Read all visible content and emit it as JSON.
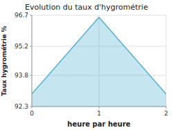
{
  "chart_data": {
    "type": "area",
    "title": "Evolution du taux d'hygrométrie",
    "x_label": "heure par heure",
    "y_label": "Taux hygrométrie %",
    "x": [
      0,
      1,
      2
    ],
    "values": [
      92.9,
      96.6,
      92.9
    ],
    "color": "#5ab4d4",
    "xlim": [
      0,
      2
    ],
    "ylim": [
      92.3,
      96.7
    ],
    "xticks": [
      0,
      1,
      2
    ],
    "yticks": [
      92.3,
      93.8,
      95.2,
      96.7
    ],
    "grid": true
  }
}
